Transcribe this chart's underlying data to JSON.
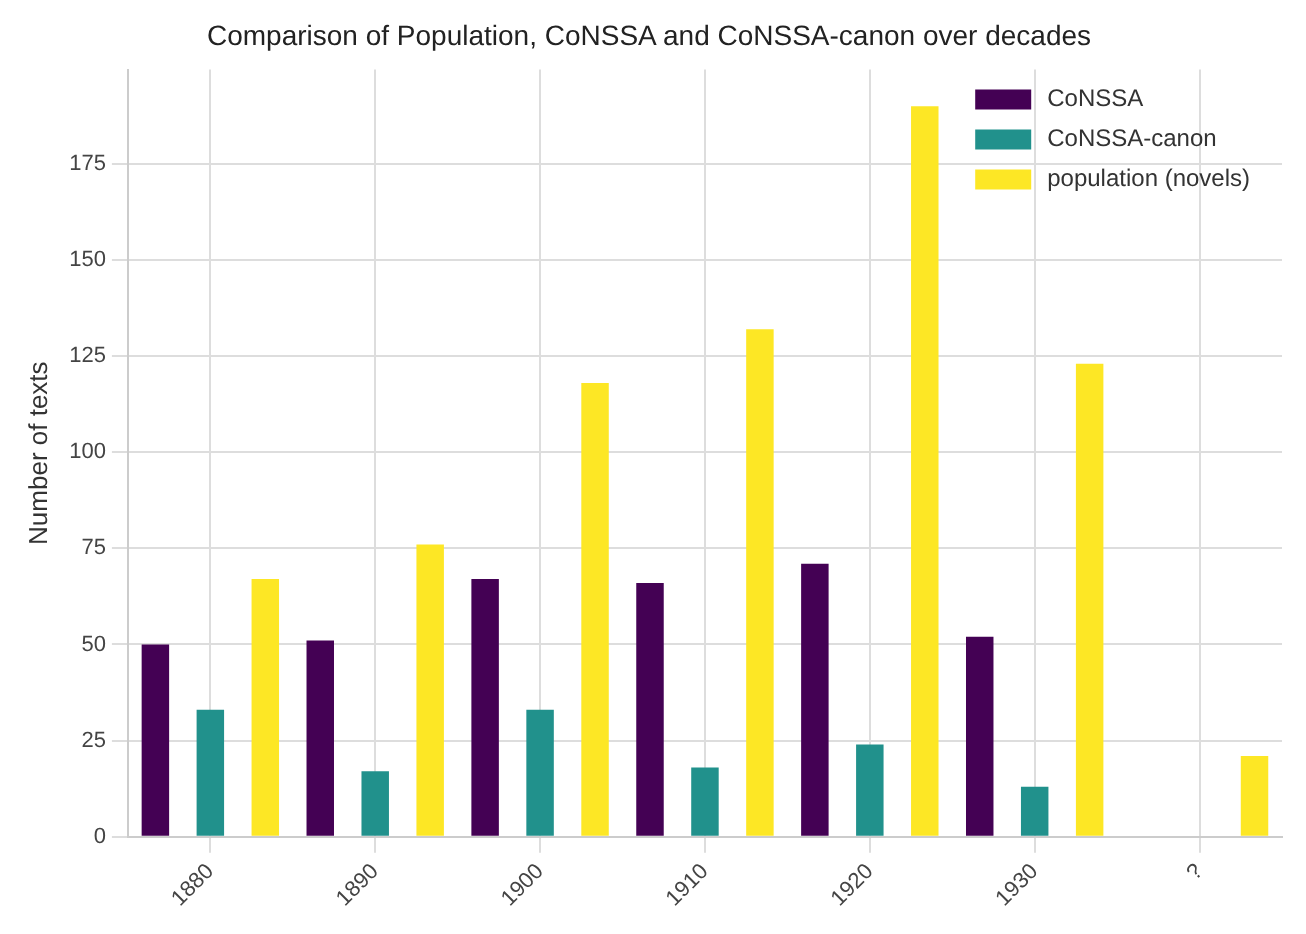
{
  "chart_data": {
    "type": "bar",
    "title": "Comparison of Population, CoNSSA and CoNSSA-canon over decades",
    "ylabel": "Number of texts",
    "categories": [
      "1880",
      "1890",
      "1900",
      "1910",
      "1920",
      "1930",
      "?"
    ],
    "series": [
      {
        "name": "CoNSSA",
        "color": "#440154",
        "values": [
          50,
          51,
          67,
          66,
          71,
          52,
          null
        ]
      },
      {
        "name": "CoNSSA-canon",
        "color": "#21918c",
        "values": [
          33,
          17,
          33,
          18,
          24,
          13,
          null
        ]
      },
      {
        "name": "population (novels)",
        "color": "#fde725",
        "values": [
          67,
          76,
          118,
          132,
          190,
          123,
          21
        ]
      }
    ],
    "ylim": [
      0,
      199.5
    ],
    "yticks": [
      0,
      25,
      50,
      75,
      100,
      125,
      150,
      175
    ],
    "grid": true,
    "legend": "top right"
  }
}
